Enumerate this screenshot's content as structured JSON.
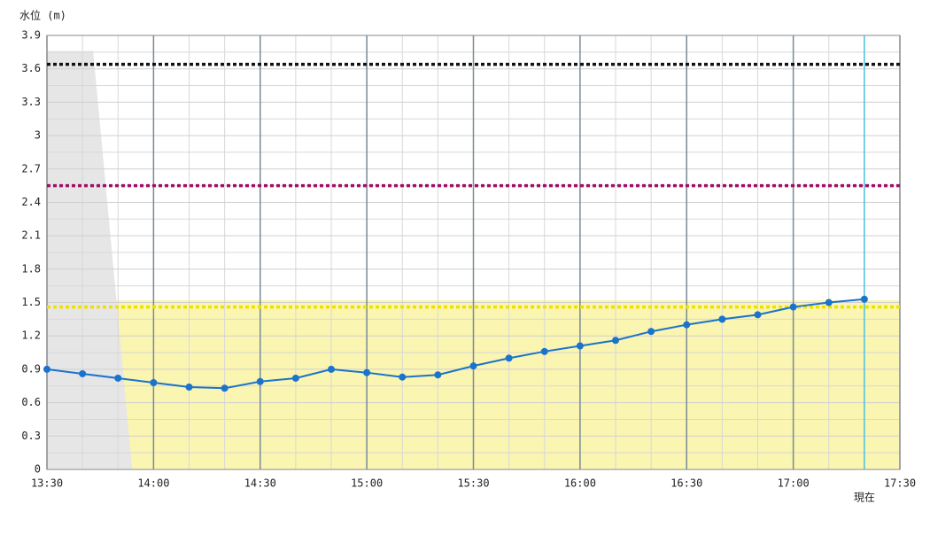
{
  "chart_data": {
    "type": "line",
    "y_label": "水位 (m)",
    "x": [
      "13:30",
      "13:40",
      "13:50",
      "14:00",
      "14:10",
      "14:20",
      "14:30",
      "14:40",
      "14:50",
      "15:00",
      "15:10",
      "15:20",
      "15:30",
      "15:40",
      "15:50",
      "16:00",
      "16:10",
      "16:20",
      "16:30",
      "16:40",
      "16:50",
      "17:00",
      "17:10",
      "17:20"
    ],
    "series": [
      {
        "color": "#1a73cc",
        "values": [
          0.9,
          0.86,
          0.82,
          0.78,
          0.74,
          0.73,
          0.79,
          0.82,
          0.9,
          0.87,
          0.83,
          0.85,
          0.93,
          1.0,
          1.06,
          1.11,
          1.16,
          1.24,
          1.3,
          1.35,
          1.39,
          1.46,
          1.5,
          1.53
        ]
      }
    ],
    "xlim": [
      "13:30",
      "17:30"
    ],
    "xticks": [
      "13:30",
      "14:00",
      "14:30",
      "15:00",
      "15:30",
      "16:00",
      "16:30",
      "17:00",
      "17:30"
    ],
    "ylim": [
      0,
      3.9
    ],
    "yticks": [
      0,
      0.3,
      0.6,
      0.9,
      1.2,
      1.5,
      1.8,
      2.1,
      2.4,
      2.7,
      3,
      3.3,
      3.6,
      3.9
    ],
    "grid": true,
    "thresholds": [
      {
        "value": 3.64,
        "color": "#111111"
      },
      {
        "value": 2.55,
        "color": "#a0106a"
      },
      {
        "value": 1.46,
        "color": "#f0e000"
      }
    ],
    "band": {
      "value": 1.52,
      "color": "#faf5b0"
    },
    "shade": {
      "x": [
        "13:30",
        "13:43",
        "13:54"
      ],
      "values": [
        3.76,
        3.76,
        0
      ],
      "color": "#e6e6e6"
    },
    "now": {
      "x": "17:20",
      "label": "現在",
      "color": "#4cc0e0"
    }
  }
}
